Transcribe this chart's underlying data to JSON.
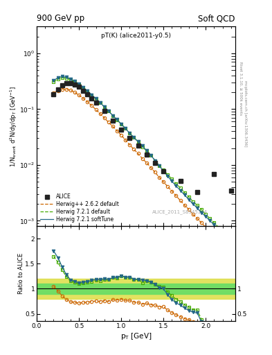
{
  "title_left": "900 GeV pp",
  "title_right": "Soft QCD",
  "panel_label": "pT(K) (alice2011-y0.5)",
  "watermark": "ALICE_2011_S8945144",
  "right_label1": "Rivet 3.1.10, ≥ 500k events",
  "right_label2": "mcplots.cern.ch [arXiv:1306.3436]",
  "ylabel_main": "1/N$_{\\mathregular{event}}$ d$^2$N/dy/dp$_{\\mathregular{T}}$ [GeV$^{-1}$]",
  "ylabel_ratio": "Ratio to ALICE",
  "xlabel": "p$_{\\mathregular{T}}$ [GeV]",
  "alice_pt": [
    0.2,
    0.25,
    0.3,
    0.35,
    0.4,
    0.45,
    0.5,
    0.55,
    0.6,
    0.65,
    0.7,
    0.8,
    0.9,
    1.0,
    1.1,
    1.2,
    1.3,
    1.4,
    1.5,
    1.7,
    1.9,
    2.1,
    2.3
  ],
  "alice_y": [
    0.185,
    0.225,
    0.265,
    0.29,
    0.295,
    0.275,
    0.25,
    0.215,
    0.185,
    0.155,
    0.13,
    0.092,
    0.063,
    0.043,
    0.03,
    0.022,
    0.0155,
    0.011,
    0.0078,
    0.0052,
    0.0033,
    0.0068,
    0.0035
  ],
  "hwpp_pt": [
    0.2,
    0.25,
    0.3,
    0.35,
    0.4,
    0.45,
    0.5,
    0.55,
    0.6,
    0.65,
    0.7,
    0.75,
    0.8,
    0.85,
    0.9,
    0.95,
    1.0,
    1.05,
    1.1,
    1.15,
    1.2,
    1.25,
    1.3,
    1.35,
    1.4,
    1.45,
    1.5,
    1.55,
    1.6,
    1.65,
    1.7,
    1.75,
    1.8,
    1.85,
    1.9,
    1.95,
    2.0,
    2.05,
    2.1,
    2.15,
    2.2
  ],
  "hwpp_y": [
    0.195,
    0.215,
    0.228,
    0.228,
    0.218,
    0.2,
    0.178,
    0.156,
    0.135,
    0.116,
    0.098,
    0.083,
    0.07,
    0.058,
    0.049,
    0.041,
    0.034,
    0.028,
    0.023,
    0.019,
    0.016,
    0.013,
    0.011,
    0.009,
    0.0074,
    0.006,
    0.005,
    0.0041,
    0.0034,
    0.0028,
    0.0023,
    0.0019,
    0.0016,
    0.0013,
    0.0011,
    0.00092,
    0.00077,
    0.00065,
    0.00055,
    0.00046,
    0.00038
  ],
  "hw721_pt": [
    0.2,
    0.25,
    0.3,
    0.35,
    0.4,
    0.45,
    0.5,
    0.55,
    0.6,
    0.65,
    0.7,
    0.75,
    0.8,
    0.85,
    0.9,
    0.95,
    1.0,
    1.05,
    1.1,
    1.15,
    1.2,
    1.25,
    1.3,
    1.35,
    1.4,
    1.45,
    1.5,
    1.55,
    1.6,
    1.65,
    1.7,
    1.75,
    1.8,
    1.85,
    1.9,
    1.95,
    2.0,
    2.05,
    2.1,
    2.15,
    2.2
  ],
  "hw721_y": [
    0.305,
    0.345,
    0.365,
    0.36,
    0.34,
    0.31,
    0.275,
    0.24,
    0.208,
    0.178,
    0.152,
    0.129,
    0.109,
    0.092,
    0.077,
    0.064,
    0.054,
    0.045,
    0.037,
    0.031,
    0.026,
    0.021,
    0.018,
    0.015,
    0.012,
    0.0098,
    0.0081,
    0.0067,
    0.0056,
    0.0046,
    0.0039,
    0.0032,
    0.0027,
    0.0022,
    0.0019,
    0.0016,
    0.0013,
    0.0011,
    0.00092,
    0.00077,
    0.00065
  ],
  "hwsoft_pt": [
    0.2,
    0.25,
    0.3,
    0.35,
    0.4,
    0.45,
    0.5,
    0.55,
    0.6,
    0.65,
    0.7,
    0.75,
    0.8,
    0.85,
    0.9,
    0.95,
    1.0,
    1.05,
    1.1,
    1.15,
    1.2,
    1.25,
    1.3,
    1.35,
    1.4,
    1.45,
    1.5,
    1.55,
    1.6,
    1.65,
    1.7,
    1.75,
    1.8,
    1.85,
    1.9,
    1.95,
    2.0,
    2.05,
    2.1,
    2.15,
    2.2
  ],
  "hwsoft_y": [
    0.325,
    0.365,
    0.382,
    0.372,
    0.348,
    0.316,
    0.28,
    0.244,
    0.211,
    0.181,
    0.154,
    0.131,
    0.11,
    0.092,
    0.077,
    0.065,
    0.054,
    0.045,
    0.037,
    0.031,
    0.026,
    0.022,
    0.018,
    0.015,
    0.012,
    0.0096,
    0.0078,
    0.0063,
    0.0051,
    0.0042,
    0.0035,
    0.0029,
    0.0024,
    0.002,
    0.0017,
    0.0014,
    0.0012,
    0.001,
    0.00085,
    0.00071,
    0.00059
  ],
  "band_inner_color": "#66dd66",
  "band_outer_color": "#dddd44",
  "alice_color": "#222222",
  "hwpp_color": "#cc6600",
  "hw721_color": "#44aa00",
  "hwsoft_color": "#226688",
  "xlim": [
    0.0,
    2.35
  ],
  "ylim_main": [
    0.0008,
    3.0
  ],
  "ylim_ratio": [
    0.35,
    2.25
  ],
  "ratio_yticks": [
    0.5,
    1.0,
    1.5,
    2.0
  ],
  "ratio_yticklabels": [
    "0.5",
    "1",
    "1.5",
    "2"
  ]
}
